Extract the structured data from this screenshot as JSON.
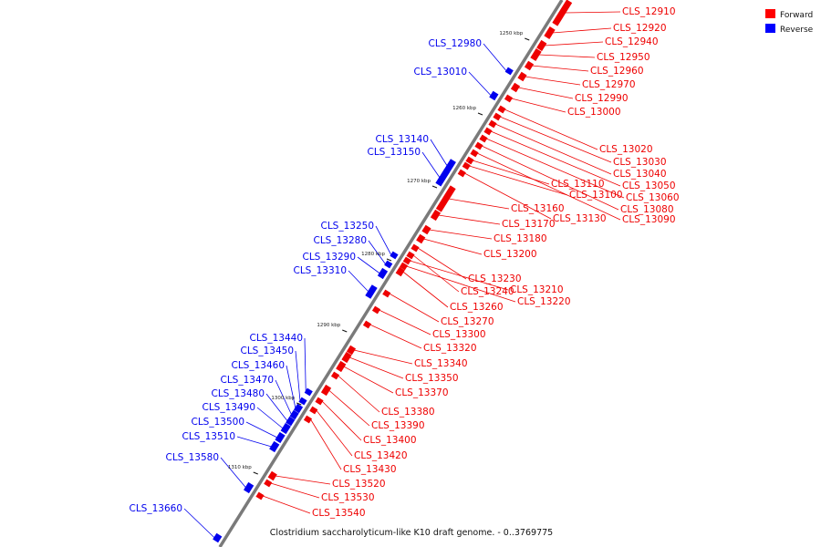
{
  "caption": "Clostridium saccharolyticum-like K10 draft genome. - 0..3769775",
  "legend": [
    {
      "label": "Forward",
      "color": "#ff0000"
    },
    {
      "label": "Reverse",
      "color": "#0000ff"
    }
  ],
  "colors": {
    "forward": "#ee0000",
    "reverse": "#0000ee",
    "backbone": "#7a7a7a"
  },
  "ticks": [
    "1250 kbp",
    "1260 kbp",
    "1270 kbp",
    "1280 kbp",
    "1290 kbp",
    "1300 kbp",
    "1310 kbp"
  ],
  "forward_genes": [
    "CLS_12910",
    "CLS_12920",
    "CLS_12940",
    "CLS_12950",
    "CLS_12960",
    "CLS_12970",
    "CLS_12990",
    "CLS_13000",
    "CLS_13020",
    "CLS_13030",
    "CLS_13040",
    "CLS_13050",
    "CLS_13060",
    "CLS_13080",
    "CLS_13090",
    "CLS_13110",
    "CLS_13100",
    "CLS_13130",
    "CLS_13160",
    "CLS_13170",
    "CLS_13180",
    "CLS_13200",
    "CLS_13230",
    "CLS_13240",
    "CLS_13210",
    "CLS_13220",
    "CLS_13260",
    "CLS_13270",
    "CLS_13300",
    "CLS_13320",
    "CLS_13340",
    "CLS_13350",
    "CLS_13370",
    "CLS_13380",
    "CLS_13390",
    "CLS_13400",
    "CLS_13420",
    "CLS_13430",
    "CLS_13520",
    "CLS_13530",
    "CLS_13540"
  ],
  "reverse_genes": [
    "CLS_12980",
    "CLS_13010",
    "CLS_13140",
    "CLS_13150",
    "CLS_13250",
    "CLS_13280",
    "CLS_13290",
    "CLS_13310",
    "CLS_13440",
    "CLS_13450",
    "CLS_13460",
    "CLS_13470",
    "CLS_13480",
    "CLS_13490",
    "CLS_13500",
    "CLS_13510",
    "CLS_13580",
    "CLS_13660"
  ]
}
